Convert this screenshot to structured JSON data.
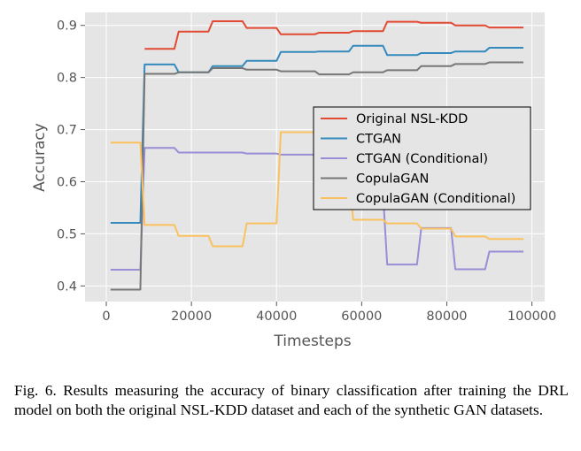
{
  "caption": "Fig. 6.  Results measuring the accuracy of binary classification after training the DRL model on both the original NSL-KDD dataset and each of the synthetic GAN datasets.",
  "chart_data": {
    "type": "line",
    "title": "",
    "xlabel": "Timesteps",
    "ylabel": "Accuracy",
    "xlim": [
      -5000,
      103000
    ],
    "ylim": [
      0.37,
      0.925
    ],
    "xticks": [
      0,
      20000,
      40000,
      60000,
      80000,
      100000
    ],
    "xtick_labels": [
      "0",
      "20000",
      "40000",
      "60000",
      "80000",
      "100000"
    ],
    "yticks": [
      0.4,
      0.5,
      0.6,
      0.7,
      0.8,
      0.9
    ],
    "ytick_labels": [
      "0.4",
      "0.5",
      "0.6",
      "0.7",
      "0.8",
      "0.9"
    ],
    "grid": true,
    "legend_position": "center-right",
    "background": "#e5e5e5",
    "series": [
      {
        "name": "Original NSL-KDD",
        "color": "#e24a33",
        "x": [
          1000,
          8000,
          9000,
          16000,
          17000,
          24000,
          25000,
          32000,
          33000,
          40000,
          41000,
          49000,
          50000,
          57000,
          58000,
          65000,
          66000,
          73000,
          74000,
          81000,
          82000,
          89000,
          90000,
          98000
        ],
        "y": [
          null,
          null,
          0.855,
          0.855,
          0.888,
          0.888,
          0.908,
          0.908,
          0.895,
          0.895,
          0.883,
          0.883,
          0.886,
          0.886,
          0.889,
          0.889,
          0.907,
          0.907,
          0.905,
          0.905,
          0.9,
          0.9,
          0.896,
          0.896
        ]
      },
      {
        "name": "CTGAN",
        "color": "#348abd",
        "x": [
          1000,
          8000,
          9000,
          16000,
          17000,
          24000,
          25000,
          32000,
          33000,
          40000,
          41000,
          49000,
          50000,
          57000,
          58000,
          65000,
          66000,
          73000,
          74000,
          81000,
          82000,
          89000,
          90000,
          98000
        ],
        "y": [
          0.521,
          0.521,
          0.825,
          0.825,
          0.81,
          0.81,
          0.822,
          0.822,
          0.832,
          0.832,
          0.849,
          0.849,
          0.85,
          0.85,
          0.861,
          0.861,
          0.843,
          0.843,
          0.847,
          0.847,
          0.85,
          0.85,
          0.857,
          0.857
        ]
      },
      {
        "name": "CTGAN (Conditional)",
        "color": "#988ed5",
        "x": [
          1000,
          8000,
          9000,
          16000,
          17000,
          24000,
          25000,
          32000,
          33000,
          40000,
          41000,
          49000,
          50000,
          57000,
          58000,
          65000,
          66000,
          73000,
          74000,
          81000,
          82000,
          89000,
          90000,
          98000
        ],
        "y": [
          0.431,
          0.431,
          0.665,
          0.665,
          0.656,
          0.656,
          0.656,
          0.656,
          0.654,
          0.654,
          0.652,
          0.652,
          0.652,
          0.652,
          0.58,
          0.58,
          0.441,
          0.441,
          0.511,
          0.511,
          0.432,
          0.432,
          0.466,
          0.466
        ]
      },
      {
        "name": "CopulaGAN",
        "color": "#777777",
        "x": [
          1000,
          8000,
          9000,
          16000,
          17000,
          24000,
          25000,
          32000,
          33000,
          40000,
          41000,
          49000,
          50000,
          57000,
          58000,
          65000,
          66000,
          73000,
          74000,
          81000,
          82000,
          89000,
          90000,
          98000
        ],
        "y": [
          0.393,
          0.393,
          0.807,
          0.807,
          0.81,
          0.81,
          0.818,
          0.818,
          0.815,
          0.815,
          0.812,
          0.812,
          0.806,
          0.806,
          0.81,
          0.81,
          0.814,
          0.814,
          0.822,
          0.822,
          0.826,
          0.826,
          0.829,
          0.829
        ]
      },
      {
        "name": "CopulaGAN (Conditional)",
        "color": "#fbc15e",
        "x": [
          1000,
          8000,
          9000,
          16000,
          17000,
          24000,
          25000,
          32000,
          33000,
          40000,
          41000,
          49000,
          50000,
          57000,
          58000,
          65000,
          66000,
          73000,
          74000,
          81000,
          82000,
          89000,
          90000,
          98000
        ],
        "y": [
          0.675,
          0.675,
          0.517,
          0.517,
          0.496,
          0.496,
          0.476,
          0.476,
          0.52,
          0.52,
          0.695,
          0.695,
          0.618,
          0.618,
          0.527,
          0.527,
          0.52,
          0.52,
          0.51,
          0.51,
          0.495,
          0.495,
          0.49,
          0.49
        ]
      }
    ]
  }
}
